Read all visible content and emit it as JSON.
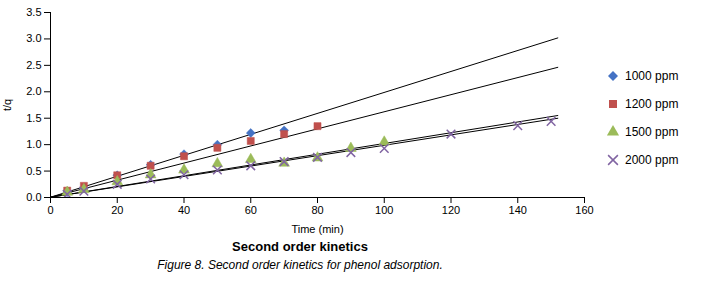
{
  "chart_data": {
    "type": "scatter",
    "title": "Second order kinetics",
    "caption": "Figure 8. Second order kinetics for phenol adsorption.",
    "xlabel": "Time (min)",
    "ylabel": "t/q",
    "xlim": [
      0,
      160
    ],
    "ylim": [
      0,
      3.5
    ],
    "xticks": [
      0,
      20,
      40,
      60,
      80,
      100,
      120,
      140,
      160
    ],
    "yticks": [
      {
        "value": 0,
        "label": "0.0"
      },
      0.5,
      {
        "value": 1.0,
        "label": "1.0"
      },
      1.5,
      {
        "value": 2.0,
        "label": "2.0"
      },
      2.5,
      {
        "value": 3.0,
        "label": "3.0"
      },
      3.5
    ],
    "grid": false,
    "legend": "right",
    "series": [
      {
        "type": "line",
        "color": "black",
        "line_style": "solid",
        "x": [
          0,
          152
        ],
        "values": [
          0.005,
          3.01916
        ]
      },
      {
        "type": "line",
        "color": "black",
        "line_style": "solid",
        "x": [
          0,
          152
        ],
        "values": [
          0.005,
          2.46284
        ]
      },
      {
        "type": "line",
        "color": "black",
        "line_style": "solid",
        "x": [
          0,
          152
        ],
        "values": [
          0.005,
          1.55084
        ]
      },
      {
        "type": "line",
        "color": "black",
        "line_style": "solid",
        "x": [
          0,
          152
        ],
        "values": [
          0.005,
          1.49916
        ]
      },
      {
        "type": "scatter",
        "name": "1000 ppm",
        "color": "#4472C4",
        "marker": "diamond",
        "x": [
          5,
          10,
          20,
          30,
          40,
          50,
          60,
          70
        ],
        "values": [
          0.1,
          0.17,
          0.42,
          0.62,
          0.82,
          1.0,
          1.22,
          1.27
        ]
      },
      {
        "type": "scatter",
        "name": "1200 ppm",
        "color": "#C0504D",
        "marker": "square",
        "x": [
          5,
          10,
          20,
          30,
          40,
          50,
          60,
          70,
          80
        ],
        "values": [
          0.13,
          0.22,
          0.42,
          0.6,
          0.78,
          0.94,
          1.07,
          1.2,
          1.35
        ]
      },
      {
        "type": "scatter",
        "name": "1500 ppm",
        "color": "#9BBB59",
        "marker": "triangle",
        "x": [
          5,
          10,
          20,
          30,
          40,
          50,
          60,
          70,
          80,
          90,
          100
        ],
        "values": [
          0.1,
          0.15,
          0.3,
          0.43,
          0.52,
          0.64,
          0.72,
          0.65,
          0.75,
          0.93,
          1.05
        ]
      },
      {
        "type": "scatter",
        "name": "2000 ppm",
        "color": "#8064A2",
        "marker": "x",
        "x": [
          5,
          10,
          20,
          30,
          40,
          50,
          60,
          70,
          80,
          90,
          100,
          120,
          140,
          150
        ],
        "values": [
          0.06,
          0.12,
          0.25,
          0.35,
          0.43,
          0.52,
          0.6,
          0.68,
          0.76,
          0.85,
          0.93,
          1.2,
          1.36,
          1.44
        ]
      }
    ]
  }
}
